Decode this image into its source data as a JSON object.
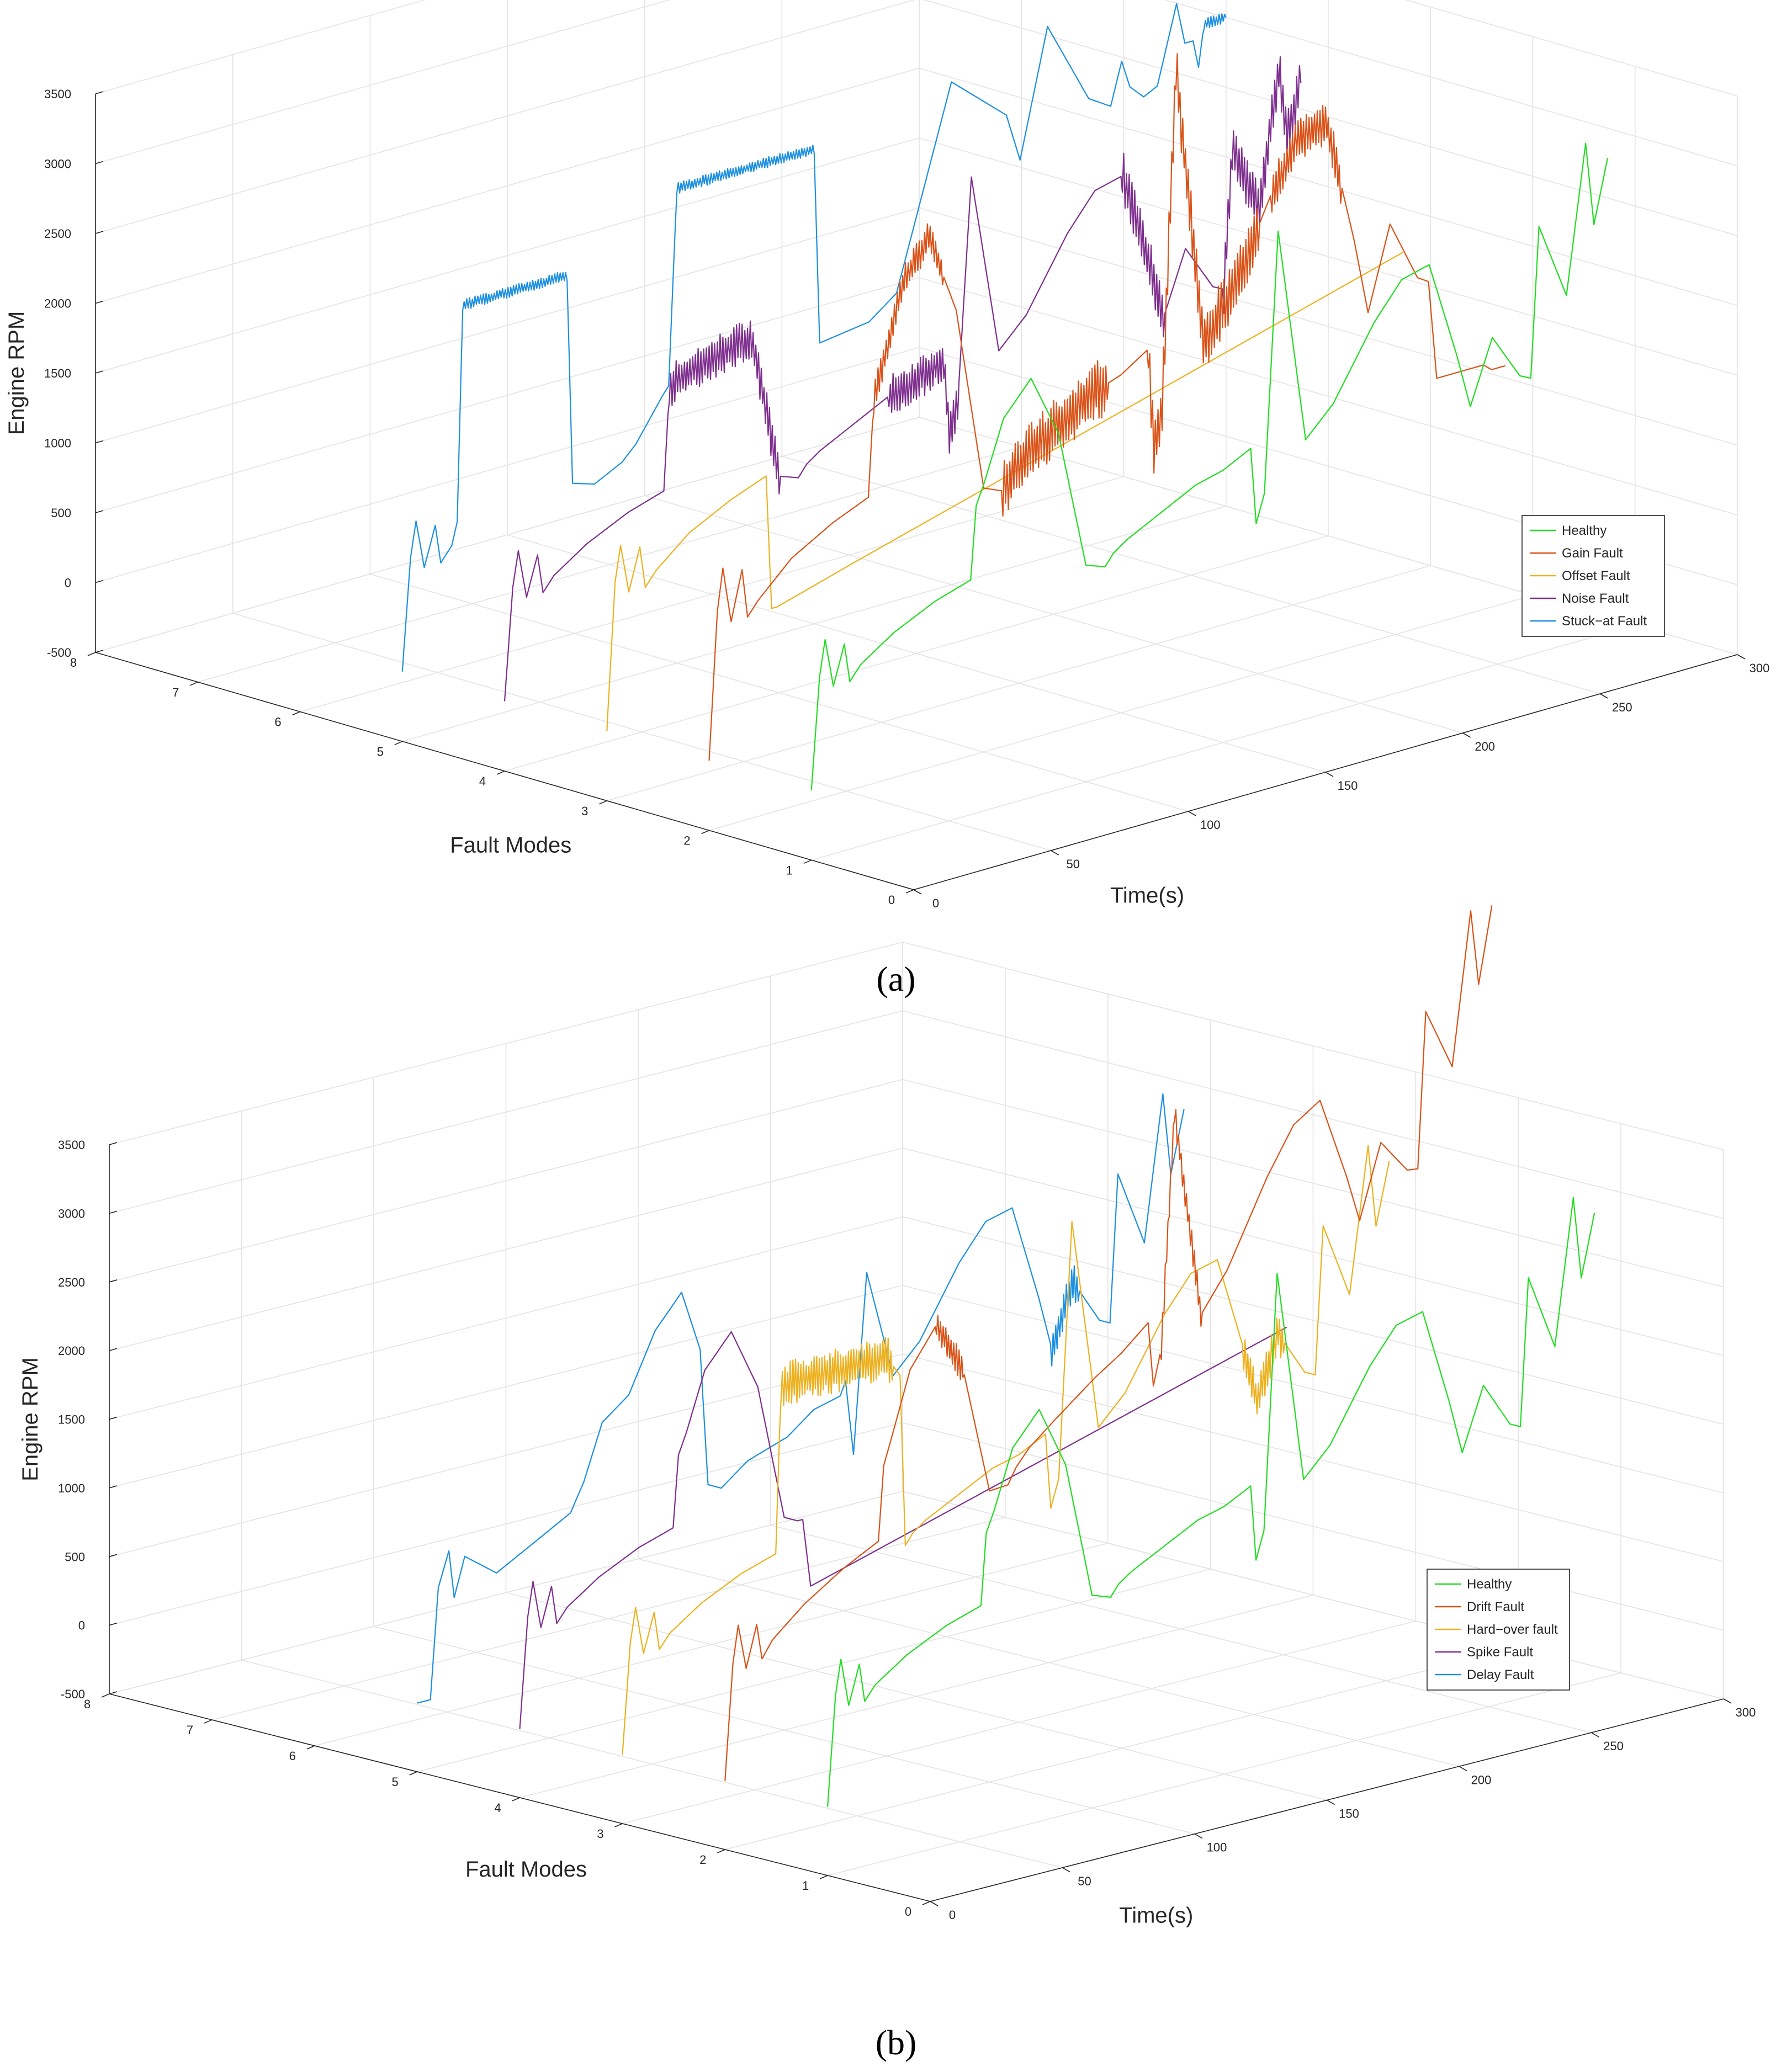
{
  "chart_data": [
    {
      "id": "a",
      "type": "line3d",
      "caption": "(a)",
      "zlabel": "Engine RPM",
      "ylabel": "Fault Modes",
      "xlabel": "Time(s)",
      "zlim": [
        -500,
        3500
      ],
      "z_ticks": [
        -500,
        0,
        500,
        1000,
        1500,
        2000,
        2500,
        3000,
        3500
      ],
      "ylim": [
        0,
        8
      ],
      "y_ticks": [
        0,
        1,
        2,
        3,
        4,
        5,
        6,
        7,
        8
      ],
      "xlim": [
        0,
        300
      ],
      "x_ticks": [
        0,
        50,
        100,
        150,
        200,
        250,
        300
      ],
      "grid": true,
      "legend_position": "right",
      "legend": [
        "Healthy",
        "Gain Fault",
        "Offset Fault",
        "Noise Fault",
        "Stuck−at Fault"
      ],
      "series": [
        {
          "name": "Healthy",
          "color": "#22dd22",
          "y": 1,
          "noise": 0,
          "t": [
            0,
            3,
            5,
            8,
            12,
            14,
            18,
            30,
            45,
            58,
            60,
            63,
            70,
            80,
            90,
            100,
            107,
            110,
            115,
            125,
            140,
            150,
            160,
            162,
            165,
            170,
            180,
            190,
            205,
            215,
            225,
            235,
            240,
            248,
            258,
            262,
            265,
            275,
            282,
            285,
            290
          ],
          "z": [
            0,
            800,
            1050,
            700,
            980,
            700,
            800,
            960,
            1100,
            1180,
            1700,
            1850,
            2270,
            2500,
            2050,
            1050,
            1000,
            1080,
            1150,
            1250,
            1400,
            1450,
            1550,
            1000,
            1200,
            3050,
            1500,
            1700,
            2200,
            2450,
            2500,
            1800,
            1400,
            1850,
            1520,
            1480,
            2550,
            2000,
            3050,
            2450,
            2900
          ],
          "regions": []
        },
        {
          "name": "Gain Fault",
          "color": "#d95319",
          "y": 2,
          "noise": 0,
          "t": [
            0,
            3,
            5,
            8,
            12,
            14,
            18,
            30,
            45,
            58,
            60,
            63,
            70,
            80,
            90,
            100,
            107,
            110,
            115,
            125,
            140,
            150,
            160,
            162,
            165,
            170,
            180,
            190,
            205,
            215,
            225,
            235,
            240,
            248,
            258,
            262,
            265,
            275,
            282,
            285,
            290
          ],
          "z": [
            0,
            1050,
            1350,
            950,
            1300,
            950,
            1050,
            1280,
            1450,
            1560,
            2260,
            2450,
            3000,
            3300,
            2720,
            1390,
            1330,
            1430,
            1530,
            1650,
            1850,
            1920,
            2050,
            1330,
            1600,
            4000,
            1990,
            2260,
            2920,
            3250,
            3300,
            2400,
            1860,
            2450,
            2010,
            1960,
            1250,
            1250,
            1250,
            1200,
            1200
          ],
          "regions": [
            [
              60,
              85,
              120
            ],
            [
              107,
              145,
              220
            ],
            [
              160,
              200,
              220
            ],
            [
              205,
              230,
              160
            ]
          ]
        },
        {
          "name": "Offset Fault",
          "color": "#edb120",
          "y": 3,
          "noise": 0,
          "t": [
            0,
            3,
            5,
            8,
            12,
            14,
            18,
            30,
            45,
            58,
            60,
            62,
            90,
            110,
            130,
            150,
            170,
            190,
            210,
            230,
            250,
            270,
            290
          ],
          "z": [
            0,
            1050,
            1300,
            950,
            1250,
            950,
            1050,
            1250,
            1400,
            1500,
            540,
            540,
            700,
            810,
            920,
            1030,
            1140,
            1250,
            1360,
            1470,
            1580,
            1690,
            1800
          ],
          "regions": []
        },
        {
          "name": "Noise Fault",
          "color": "#7e2f8e",
          "y": 4,
          "noise": 0,
          "t": [
            0,
            3,
            5,
            8,
            12,
            14,
            18,
            30,
            45,
            58,
            60,
            63,
            70,
            80,
            90,
            100,
            107,
            110,
            115,
            125,
            140,
            150,
            160,
            162,
            165,
            170,
            180,
            190,
            205,
            215,
            225,
            235,
            240,
            248,
            258,
            262,
            265,
            275,
            282,
            285,
            290
          ],
          "z": [
            0,
            800,
            1050,
            700,
            980,
            700,
            800,
            960,
            1100,
            1180,
            1900,
            1950,
            2000,
            2050,
            2100,
            1050,
            1000,
            1080,
            1150,
            1250,
            1400,
            1450,
            1550,
            1000,
            1200,
            2800,
            1500,
            1700,
            2200,
            2450,
            2500,
            1800,
            1400,
            1850,
            1520,
            1480,
            2450,
            2000,
            2950,
            2450,
            2800
          ],
          "regions": [
            [
              60,
              100,
              150
            ],
            [
              140,
              165,
              150
            ],
            [
              225,
              240,
              200
            ],
            [
              262,
              290,
              180
            ]
          ]
        },
        {
          "name": "Stuck−at Fault",
          "color": "#1e90e0",
          "y": 5,
          "noise": 0,
          "t": [
            0,
            3,
            5,
            8,
            12,
            14,
            18,
            20,
            22,
            60,
            62,
            70,
            80,
            85,
            90,
            95,
            97,
            100,
            102,
            150,
            152,
            170,
            180,
            200,
            220,
            225,
            235,
            250,
            258,
            262,
            265,
            270,
            275,
            282,
            285,
            288,
            290,
            292,
            300
          ],
          "z": [
            0,
            800,
            1050,
            700,
            980,
            700,
            800,
            960,
            2500,
            2500,
            1000,
            950,
            1050,
            1150,
            1300,
            1450,
            1500,
            2900,
            2900,
            2900,
            1500,
            1550,
            1700,
            3100,
            2750,
            2400,
            3300,
            2700,
            2600,
            2900,
            2700,
            2600,
            2650,
            3200,
            2900,
            2900,
            2700,
            3000,
            3000
          ],
          "regions": [
            [
              22,
              60,
              40
            ],
            [
              100,
              150,
              40
            ],
            [
              292,
              300,
              40
            ]
          ]
        }
      ]
    },
    {
      "id": "b",
      "type": "line3d",
      "caption": "(b)",
      "zlabel": "Engine RPM",
      "ylabel": "Fault Modes",
      "xlabel": "Time(s)",
      "zlim": [
        -500,
        3500
      ],
      "z_ticks": [
        -500,
        0,
        500,
        1000,
        1500,
        2000,
        2500,
        3000,
        3500
      ],
      "ylim": [
        0,
        8
      ],
      "y_ticks": [
        0,
        1,
        2,
        3,
        4,
        5,
        6,
        7,
        8
      ],
      "xlim": [
        0,
        300
      ],
      "x_ticks": [
        0,
        50,
        100,
        150,
        200,
        250,
        300
      ],
      "grid": true,
      "legend_position": "right",
      "legend": [
        "Healthy",
        "Drift Fault",
        "Hard−over fault",
        "Spike Fault",
        "Delay Fault"
      ],
      "series": [
        {
          "name": "Healthy",
          "color": "#22dd22",
          "y": 1,
          "noise": 0,
          "t": [
            0,
            3,
            5,
            8,
            12,
            14,
            18,
            30,
            45,
            58,
            60,
            63,
            70,
            80,
            90,
            100,
            107,
            110,
            115,
            125,
            140,
            150,
            160,
            162,
            165,
            170,
            180,
            190,
            205,
            215,
            225,
            235,
            240,
            248,
            258,
            262,
            265,
            275,
            282,
            285,
            290
          ],
          "z": [
            0,
            800,
            1050,
            700,
            980,
            700,
            800,
            960,
            1100,
            1180,
            1700,
            1850,
            2270,
            2500,
            2050,
            1050,
            1000,
            1080,
            1150,
            1250,
            1400,
            1450,
            1550,
            1000,
            1200,
            3050,
            1500,
            1700,
            2200,
            2450,
            2500,
            1800,
            1400,
            1850,
            1520,
            1480,
            2550,
            2000,
            3050,
            2450,
            2900
          ],
          "regions": []
        },
        {
          "name": "Drift Fault",
          "color": "#d95319",
          "y": 2,
          "noise": 0,
          "t": [
            0,
            3,
            5,
            8,
            12,
            14,
            18,
            30,
            45,
            58,
            60,
            63,
            70,
            80,
            90,
            100,
            107,
            110,
            115,
            125,
            140,
            150,
            160,
            162,
            165,
            170,
            180,
            190,
            205,
            215,
            225,
            235,
            240,
            248,
            258,
            262,
            265,
            275,
            282,
            285,
            290
          ],
          "z": [
            0,
            840,
            1110,
            780,
            1080,
            820,
            940,
            1140,
            1330,
            1460,
            2000,
            2190,
            2650,
            2930,
            2560,
            1620,
            1630,
            1740,
            1860,
            2020,
            2250,
            2380,
            2550,
            2080,
            2340,
            4040,
            2510,
            2790,
            3390,
            3720,
            3850,
            3250,
            2900,
            3430,
            3180,
            3170,
            4300,
            3850,
            4950,
            4400,
            4950
          ],
          "regions": [
            [
              80,
              90,
              120
            ],
            [
              165,
              180,
              100
            ]
          ]
        },
        {
          "name": "Hard−over fault",
          "color": "#edb120",
          "y": 3,
          "noise": 0,
          "t": [
            0,
            3,
            5,
            8,
            12,
            14,
            18,
            30,
            45,
            58,
            60,
            63,
            100,
            105,
            107,
            110,
            115,
            125,
            140,
            150,
            160,
            162,
            165,
            170,
            180,
            190,
            205,
            215,
            225,
            235,
            240,
            248,
            258,
            262,
            265,
            275,
            282,
            285,
            290
          ],
          "z": [
            0,
            800,
            1050,
            700,
            980,
            700,
            800,
            960,
            1100,
            1180,
            2400,
            2400,
            2400,
            2250,
            1000,
            1080,
            1150,
            1250,
            1400,
            1450,
            1550,
            1000,
            1200,
            3050,
            1500,
            1700,
            2200,
            2450,
            2500,
            1800,
            1400,
            1850,
            1520,
            1480,
            2550,
            2000,
            3050,
            2450,
            2900
          ],
          "regions": [
            [
              60,
              102,
              160
            ],
            [
              235,
              250,
              150
            ]
          ]
        },
        {
          "name": "Spike Fault",
          "color": "#7e2f8e",
          "y": 4,
          "noise": 0,
          "t": [
            0,
            3,
            5,
            8,
            12,
            14,
            18,
            30,
            45,
            58,
            60,
            63,
            70,
            80,
            90,
            100,
            105,
            107,
            110,
            290
          ],
          "z": [
            0,
            800,
            1050,
            700,
            980,
            700,
            800,
            960,
            1100,
            1180,
            1700,
            1850,
            2270,
            2500,
            2050,
            1050,
            1000,
            1000,
            500,
            1500
          ],
          "regions": []
        },
        {
          "name": "Delay Fault",
          "color": "#1e90e0",
          "y": 5,
          "noise": 0,
          "t": [
            0,
            3,
            5,
            8,
            12,
            14,
            18,
            30,
            45,
            58,
            60,
            63,
            70,
            80,
            90,
            100,
            107,
            110,
            115,
            125,
            140,
            150,
            160,
            162,
            165,
            170,
            180,
            190,
            205,
            215,
            225,
            235,
            240,
            248,
            258,
            262,
            265,
            275,
            282,
            285,
            290
          ],
          "z": [
            0,
            0,
            0,
            800,
            1050,
            700,
            980,
            800,
            960,
            1100,
            1180,
            1300,
            1700,
            1850,
            2270,
            2500,
            2050,
            1050,
            1000,
            1150,
            1250,
            1400,
            1450,
            1550,
            1000,
            2300,
            1500,
            1700,
            2200,
            2450,
            2500,
            1800,
            1400,
            1850,
            1520,
            1480,
            2550,
            2000,
            3050,
            2450,
            2900
          ],
          "regions": [
            [
              240,
              250,
              140
            ]
          ]
        }
      ]
    }
  ]
}
